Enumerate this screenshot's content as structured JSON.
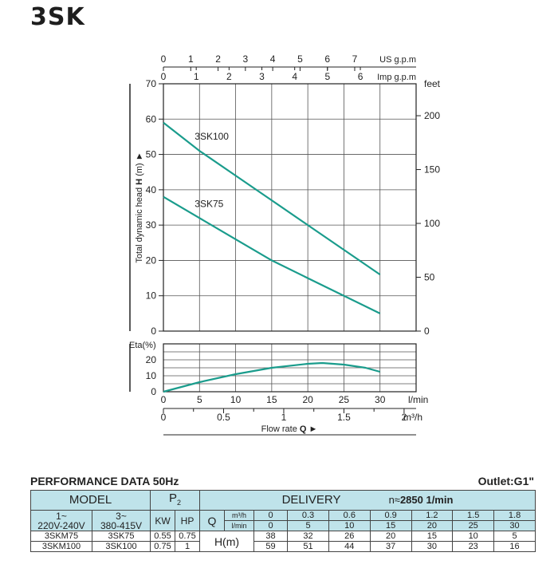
{
  "heading": "3SK",
  "chart_data": {
    "type": "line",
    "x_axis": {
      "label": "Flow rate",
      "label_bold": "Q",
      "unit": "l/min",
      "ticks": [
        0,
        5,
        10,
        15,
        20,
        25,
        30
      ],
      "range": [
        0,
        35
      ]
    },
    "x_axis_m3h": {
      "unit": "m³/h",
      "ticks": [
        "0",
        "0.5",
        "1",
        "1.5",
        "2"
      ]
    },
    "top_axis_us": {
      "unit": "US g.p.m",
      "ticks": [
        0,
        1,
        2,
        3,
        4,
        5,
        6,
        7
      ]
    },
    "top_axis_imp": {
      "unit": "Imp g.p.m",
      "ticks": [
        0,
        1,
        2,
        3,
        4,
        5,
        6
      ]
    },
    "y_axis": {
      "label": "Total dynamic head",
      "label_bold": "H",
      "unit": "(m)",
      "range": [
        0,
        70
      ],
      "ticks": [
        0,
        10,
        20,
        30,
        40,
        50,
        60,
        70
      ]
    },
    "y_axis_right": {
      "unit": "feet",
      "ticks": [
        0,
        50,
        100,
        150,
        200
      ]
    },
    "series": [
      {
        "name": "3SK100",
        "x": [
          0,
          5,
          10,
          15,
          20,
          25,
          30
        ],
        "y": [
          59,
          51,
          44,
          37,
          30,
          23,
          16
        ]
      },
      {
        "name": "3SK75",
        "x": [
          0,
          5,
          10,
          15,
          20,
          25,
          30
        ],
        "y": [
          38,
          32,
          26,
          20,
          15,
          10,
          5
        ]
      }
    ],
    "eta_axis": {
      "label": "Eta(%)",
      "range": [
        0,
        30
      ],
      "ticks": [
        0,
        10,
        20
      ]
    },
    "eta_curve": {
      "x": [
        0,
        5,
        10,
        15,
        20,
        22,
        25,
        28,
        30
      ],
      "y": [
        0,
        6,
        11,
        15,
        17.5,
        18,
        17,
        15,
        12.5
      ]
    },
    "grid": true
  },
  "performance": {
    "title": "PERFORMANCE DATA 50Hz",
    "outlet": "Outlet:G1\"",
    "model_label": "MODEL",
    "p2_label": "P",
    "p2_sub": "2",
    "delivery_label": "DELIVERY",
    "speed_prefix": "n≈",
    "speed_value": "2850  1/min",
    "phase1_line1": "1~",
    "phase1_line2": "220V-240V",
    "phase3_line1": "3~",
    "phase3_line2": "380-415V",
    "kw_label": "KW",
    "hp_label": "HP",
    "q_label": "Q",
    "q_unit_m3h": "m³/h",
    "q_unit_lmin": "l/min",
    "h_label": "H(m)",
    "q_m3h": [
      "0",
      "0.3",
      "0.6",
      "0.9",
      "1.2",
      "1.5",
      "1.8"
    ],
    "q_lmin": [
      "0",
      "5",
      "10",
      "15",
      "20",
      "25",
      "30"
    ],
    "rows": [
      {
        "single": "3SKM75",
        "three": "3SK75",
        "kw": "0.55",
        "hp": "0.75",
        "h": [
          "38",
          "32",
          "26",
          "20",
          "15",
          "10",
          "5"
        ]
      },
      {
        "single": "3SKM100",
        "three": "3SK100",
        "kw": "0.75",
        "hp": "1",
        "h": [
          "59",
          "51",
          "44",
          "37",
          "30",
          "23",
          "16"
        ]
      }
    ]
  },
  "colors": {
    "curve": "#1a9c8c",
    "header_bg": "#bfe3ea"
  }
}
